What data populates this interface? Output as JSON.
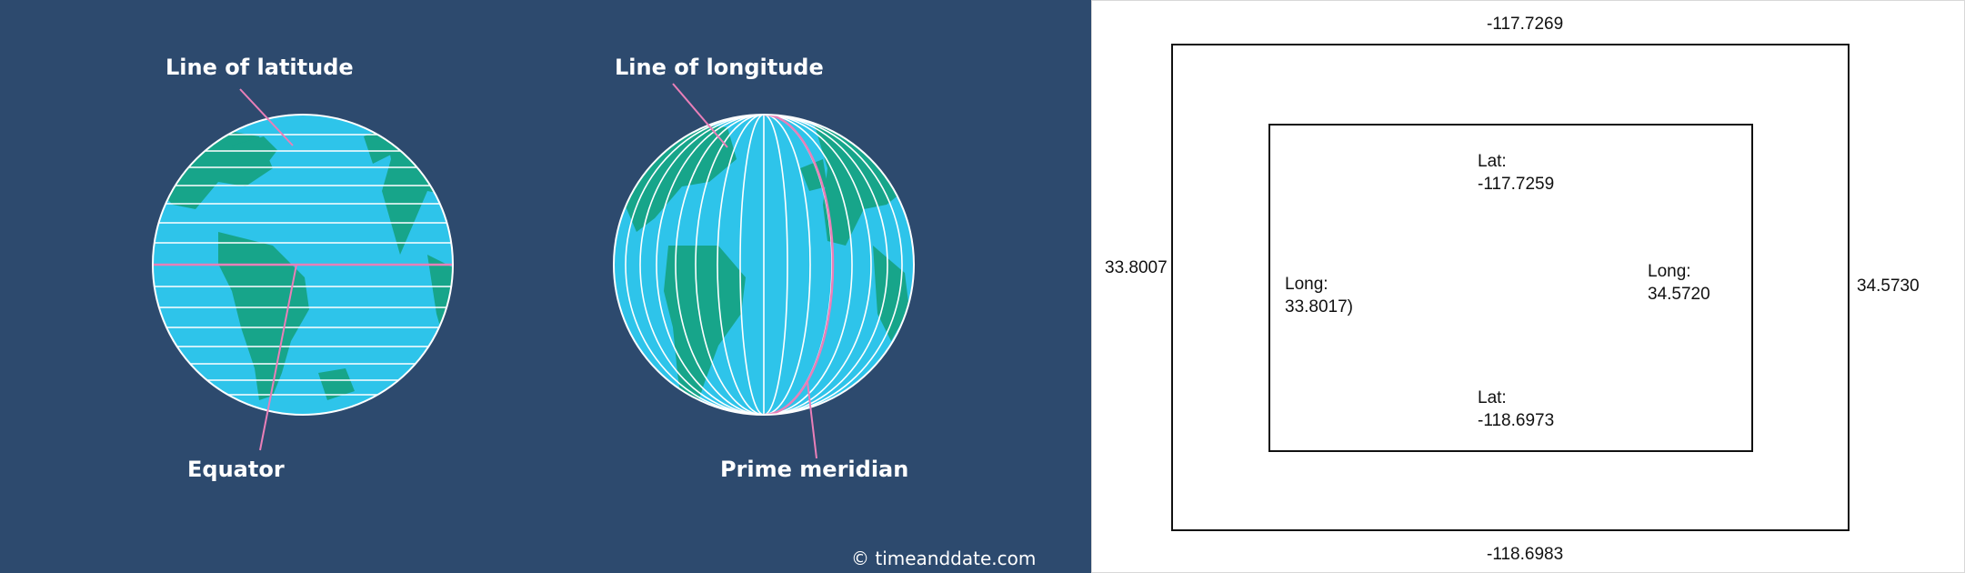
{
  "globe_diagram": {
    "label_latitude": "Line of latitude",
    "label_equator": "Equator",
    "label_longitude": "Line of longitude",
    "label_prime_meridian": "Prime meridian",
    "credit": "© timeanddate.com",
    "colors": {
      "background": "#2d4a6e",
      "ocean": "#2ec4ea",
      "land": "#17a58a",
      "grid": "#ffffff",
      "highlight": "#e97fb8"
    }
  },
  "bounding_box": {
    "outer_top": "-117.7269",
    "outer_bottom": "-118.6983",
    "outer_left": "33.8007",
    "outer_right": "34.5730",
    "inner_top_label": "Lat:",
    "inner_top_value": "-117.7259",
    "inner_bottom_label": "Lat:",
    "inner_bottom_value": "-118.6973",
    "inner_left_label": "Long:",
    "inner_left_value": "33.8017)",
    "inner_right_label": "Long:",
    "inner_right_value": "34.5720"
  }
}
